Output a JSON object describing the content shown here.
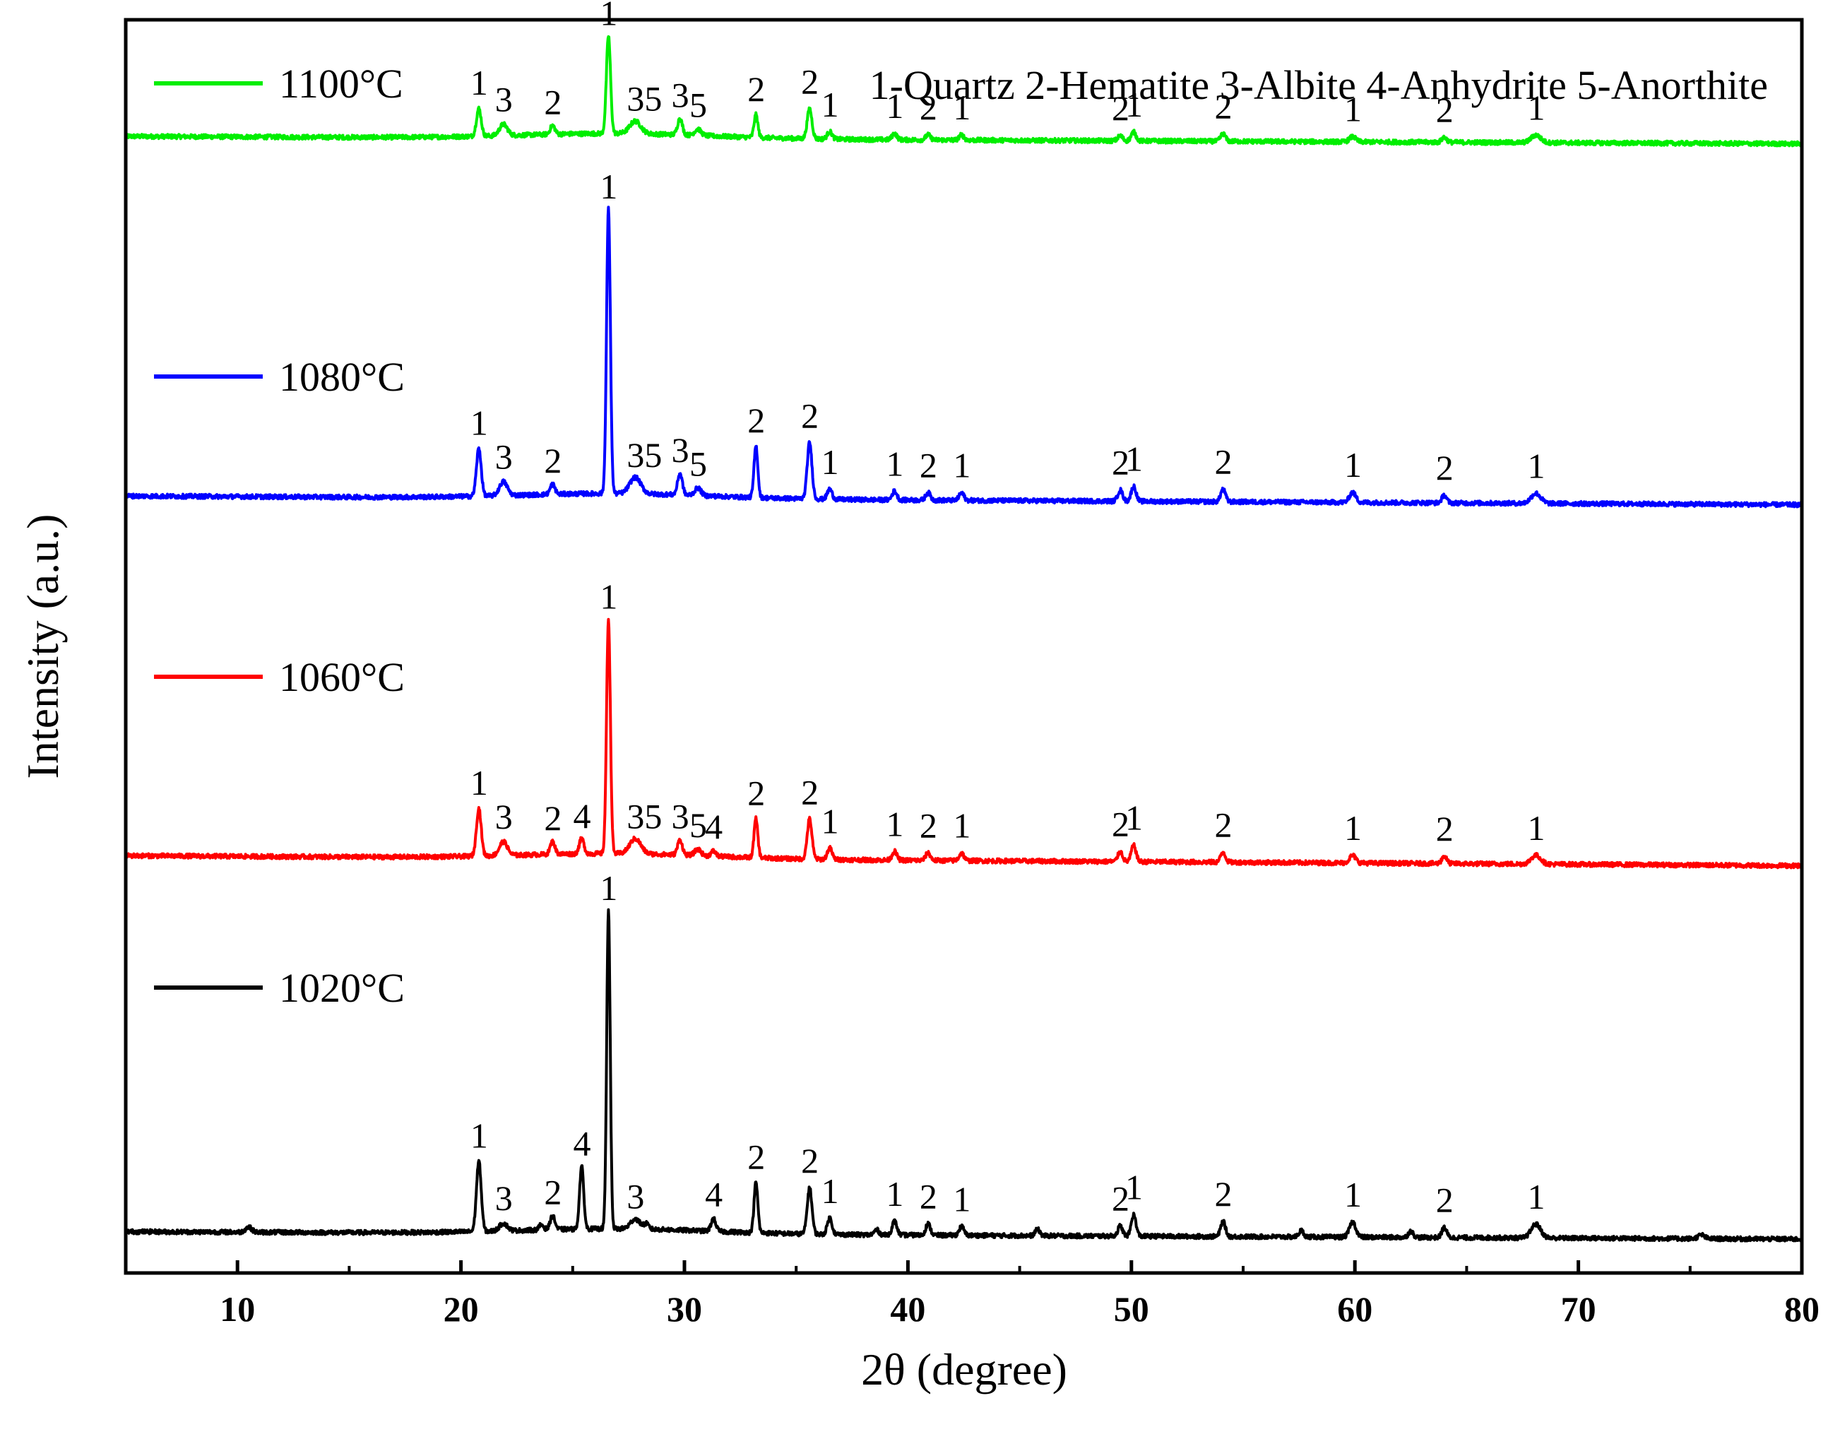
{
  "chart_data": {
    "type": "line",
    "title": "",
    "xlabel": "2θ (degree)",
    "ylabel": "Intensity (a.u.)",
    "xlim": [
      5,
      80
    ],
    "xticks": [
      10,
      20,
      30,
      40,
      50,
      60,
      70,
      80
    ],
    "xtick_labels": [
      "10",
      "20",
      "30",
      "40",
      "50",
      "60",
      "70",
      "80"
    ],
    "ylim": [
      0,
      1
    ],
    "yticks": [],
    "grid": false,
    "legend_position": "left",
    "phase_key": "1-Quartz 2-Hematite 3-Albite 4-Anhydrite 5-Anorthite",
    "series": [
      {
        "name": "1100°C",
        "color": "#00ee00",
        "baseline": 0.907,
        "drift": -0.006,
        "peaks": [
          {
            "x": 20.8,
            "h": 0.022,
            "w": 0.15,
            "label": "1"
          },
          {
            "x": 21.9,
            "h": 0.009,
            "w": 0.25,
            "label": "3"
          },
          {
            "x": 24.1,
            "h": 0.007,
            "w": 0.15,
            "label": "2"
          },
          {
            "x": 26.6,
            "h": 0.078,
            "w": 0.13,
            "label": "1"
          },
          {
            "x": 27.8,
            "h": 0.01,
            "w": 0.35,
            "label": "35"
          },
          {
            "x": 29.8,
            "h": 0.013,
            "w": 0.15,
            "label": "3"
          },
          {
            "x": 30.6,
            "h": 0.005,
            "w": 0.2,
            "label": "5"
          },
          {
            "x": 33.2,
            "h": 0.018,
            "w": 0.12,
            "label": "2"
          },
          {
            "x": 35.6,
            "h": 0.024,
            "w": 0.15,
            "label": "2"
          },
          {
            "x": 36.5,
            "h": 0.006,
            "w": 0.15,
            "label": "1"
          },
          {
            "x": 39.4,
            "h": 0.005,
            "w": 0.15,
            "label": "1"
          },
          {
            "x": 40.9,
            "h": 0.004,
            "w": 0.15,
            "label": "2"
          },
          {
            "x": 42.4,
            "h": 0.004,
            "w": 0.15,
            "label": "1"
          },
          {
            "x": 49.5,
            "h": 0.004,
            "w": 0.15,
            "label": "2"
          },
          {
            "x": 50.1,
            "h": 0.007,
            "w": 0.15,
            "label": "1"
          },
          {
            "x": 54.1,
            "h": 0.006,
            "w": 0.15,
            "label": "2"
          },
          {
            "x": 59.9,
            "h": 0.004,
            "w": 0.2,
            "label": "1"
          },
          {
            "x": 64.0,
            "h": 0.004,
            "w": 0.15,
            "label": "2"
          },
          {
            "x": 68.1,
            "h": 0.006,
            "w": 0.3,
            "label": "1"
          }
        ]
      },
      {
        "name": "1080°C",
        "color": "#0000ff",
        "baseline": 0.62,
        "drift": -0.007,
        "peaks": [
          {
            "x": 20.8,
            "h": 0.038,
            "w": 0.15,
            "label": "1"
          },
          {
            "x": 21.9,
            "h": 0.011,
            "w": 0.25,
            "label": "3"
          },
          {
            "x": 24.1,
            "h": 0.008,
            "w": 0.15,
            "label": "2"
          },
          {
            "x": 26.6,
            "h": 0.227,
            "w": 0.12,
            "label": "1"
          },
          {
            "x": 27.8,
            "h": 0.013,
            "w": 0.35,
            "label": "35"
          },
          {
            "x": 29.8,
            "h": 0.017,
            "w": 0.15,
            "label": "3"
          },
          {
            "x": 30.6,
            "h": 0.006,
            "w": 0.2,
            "label": "5"
          },
          {
            "x": 33.2,
            "h": 0.041,
            "w": 0.12,
            "label": "2"
          },
          {
            "x": 35.6,
            "h": 0.045,
            "w": 0.15,
            "label": "2"
          },
          {
            "x": 36.5,
            "h": 0.008,
            "w": 0.15,
            "label": "1"
          },
          {
            "x": 39.4,
            "h": 0.007,
            "w": 0.15,
            "label": "1"
          },
          {
            "x": 40.9,
            "h": 0.006,
            "w": 0.15,
            "label": "2"
          },
          {
            "x": 42.4,
            "h": 0.006,
            "w": 0.15,
            "label": "1"
          },
          {
            "x": 49.5,
            "h": 0.009,
            "w": 0.15,
            "label": "2"
          },
          {
            "x": 50.1,
            "h": 0.012,
            "w": 0.15,
            "label": "1"
          },
          {
            "x": 54.1,
            "h": 0.01,
            "w": 0.15,
            "label": "2"
          },
          {
            "x": 59.9,
            "h": 0.008,
            "w": 0.2,
            "label": "1"
          },
          {
            "x": 64.0,
            "h": 0.006,
            "w": 0.15,
            "label": "2"
          },
          {
            "x": 68.1,
            "h": 0.008,
            "w": 0.3,
            "label": "1"
          }
        ]
      },
      {
        "name": "1060°C",
        "color": "#ff0000",
        "baseline": 0.333,
        "drift": -0.008,
        "peaks": [
          {
            "x": 20.8,
            "h": 0.038,
            "w": 0.15,
            "label": "1"
          },
          {
            "x": 21.9,
            "h": 0.011,
            "w": 0.25,
            "label": "3"
          },
          {
            "x": 24.1,
            "h": 0.01,
            "w": 0.15,
            "label": "2"
          },
          {
            "x": 25.4,
            "h": 0.012,
            "w": 0.15,
            "label": "4"
          },
          {
            "x": 26.6,
            "h": 0.187,
            "w": 0.12,
            "label": "1"
          },
          {
            "x": 27.8,
            "h": 0.012,
            "w": 0.35,
            "label": "35"
          },
          {
            "x": 29.8,
            "h": 0.012,
            "w": 0.15,
            "label": "3"
          },
          {
            "x": 30.6,
            "h": 0.005,
            "w": 0.2,
            "label": "5"
          },
          {
            "x": 31.3,
            "h": 0.004,
            "w": 0.15,
            "label": "4"
          },
          {
            "x": 33.2,
            "h": 0.031,
            "w": 0.12,
            "label": "2"
          },
          {
            "x": 35.6,
            "h": 0.032,
            "w": 0.15,
            "label": "2"
          },
          {
            "x": 36.5,
            "h": 0.009,
            "w": 0.15,
            "label": "1"
          },
          {
            "x": 39.4,
            "h": 0.007,
            "w": 0.15,
            "label": "1"
          },
          {
            "x": 40.9,
            "h": 0.006,
            "w": 0.15,
            "label": "2"
          },
          {
            "x": 42.4,
            "h": 0.006,
            "w": 0.15,
            "label": "1"
          },
          {
            "x": 49.5,
            "h": 0.008,
            "w": 0.15,
            "label": "2"
          },
          {
            "x": 50.1,
            "h": 0.013,
            "w": 0.15,
            "label": "1"
          },
          {
            "x": 54.1,
            "h": 0.008,
            "w": 0.15,
            "label": "2"
          },
          {
            "x": 59.9,
            "h": 0.006,
            "w": 0.2,
            "label": "1"
          },
          {
            "x": 64.0,
            "h": 0.006,
            "w": 0.15,
            "label": "2"
          },
          {
            "x": 68.1,
            "h": 0.007,
            "w": 0.3,
            "label": "1"
          }
        ]
      },
      {
        "name": "1020°C",
        "color": "#000000",
        "baseline": 0.033,
        "drift": -0.006,
        "peaks": [
          {
            "x": 10.5,
            "h": 0.004,
            "w": 0.2,
            "label": ""
          },
          {
            "x": 20.8,
            "h": 0.056,
            "w": 0.15,
            "label": "1"
          },
          {
            "x": 21.9,
            "h": 0.006,
            "w": 0.25,
            "label": "3"
          },
          {
            "x": 23.6,
            "h": 0.004,
            "w": 0.15,
            "label": ""
          },
          {
            "x": 24.1,
            "h": 0.011,
            "w": 0.15,
            "label": "2"
          },
          {
            "x": 25.4,
            "h": 0.05,
            "w": 0.13,
            "label": "4"
          },
          {
            "x": 26.6,
            "h": 0.254,
            "w": 0.11,
            "label": "1"
          },
          {
            "x": 27.8,
            "h": 0.008,
            "w": 0.3,
            "label": "3"
          },
          {
            "x": 28.3,
            "h": 0.004,
            "w": 0.15,
            "label": ""
          },
          {
            "x": 31.3,
            "h": 0.01,
            "w": 0.15,
            "label": "4"
          },
          {
            "x": 33.2,
            "h": 0.04,
            "w": 0.12,
            "label": "2"
          },
          {
            "x": 35.6,
            "h": 0.037,
            "w": 0.15,
            "label": "2"
          },
          {
            "x": 36.5,
            "h": 0.013,
            "w": 0.15,
            "label": "1"
          },
          {
            "x": 38.6,
            "h": 0.004,
            "w": 0.15,
            "label": ""
          },
          {
            "x": 39.4,
            "h": 0.011,
            "w": 0.15,
            "label": "1"
          },
          {
            "x": 40.9,
            "h": 0.009,
            "w": 0.15,
            "label": "2"
          },
          {
            "x": 42.4,
            "h": 0.007,
            "w": 0.15,
            "label": "1"
          },
          {
            "x": 45.8,
            "h": 0.005,
            "w": 0.15,
            "label": ""
          },
          {
            "x": 49.5,
            "h": 0.008,
            "w": 0.15,
            "label": "2"
          },
          {
            "x": 50.1,
            "h": 0.017,
            "w": 0.15,
            "label": "1"
          },
          {
            "x": 54.1,
            "h": 0.012,
            "w": 0.15,
            "label": "2"
          },
          {
            "x": 57.6,
            "h": 0.005,
            "w": 0.15,
            "label": ""
          },
          {
            "x": 59.9,
            "h": 0.012,
            "w": 0.2,
            "label": "1"
          },
          {
            "x": 62.5,
            "h": 0.005,
            "w": 0.15,
            "label": ""
          },
          {
            "x": 64.0,
            "h": 0.008,
            "w": 0.15,
            "label": "2"
          },
          {
            "x": 68.1,
            "h": 0.011,
            "w": 0.3,
            "label": "1"
          },
          {
            "x": 75.5,
            "h": 0.003,
            "w": 0.2,
            "label": ""
          }
        ]
      }
    ]
  }
}
